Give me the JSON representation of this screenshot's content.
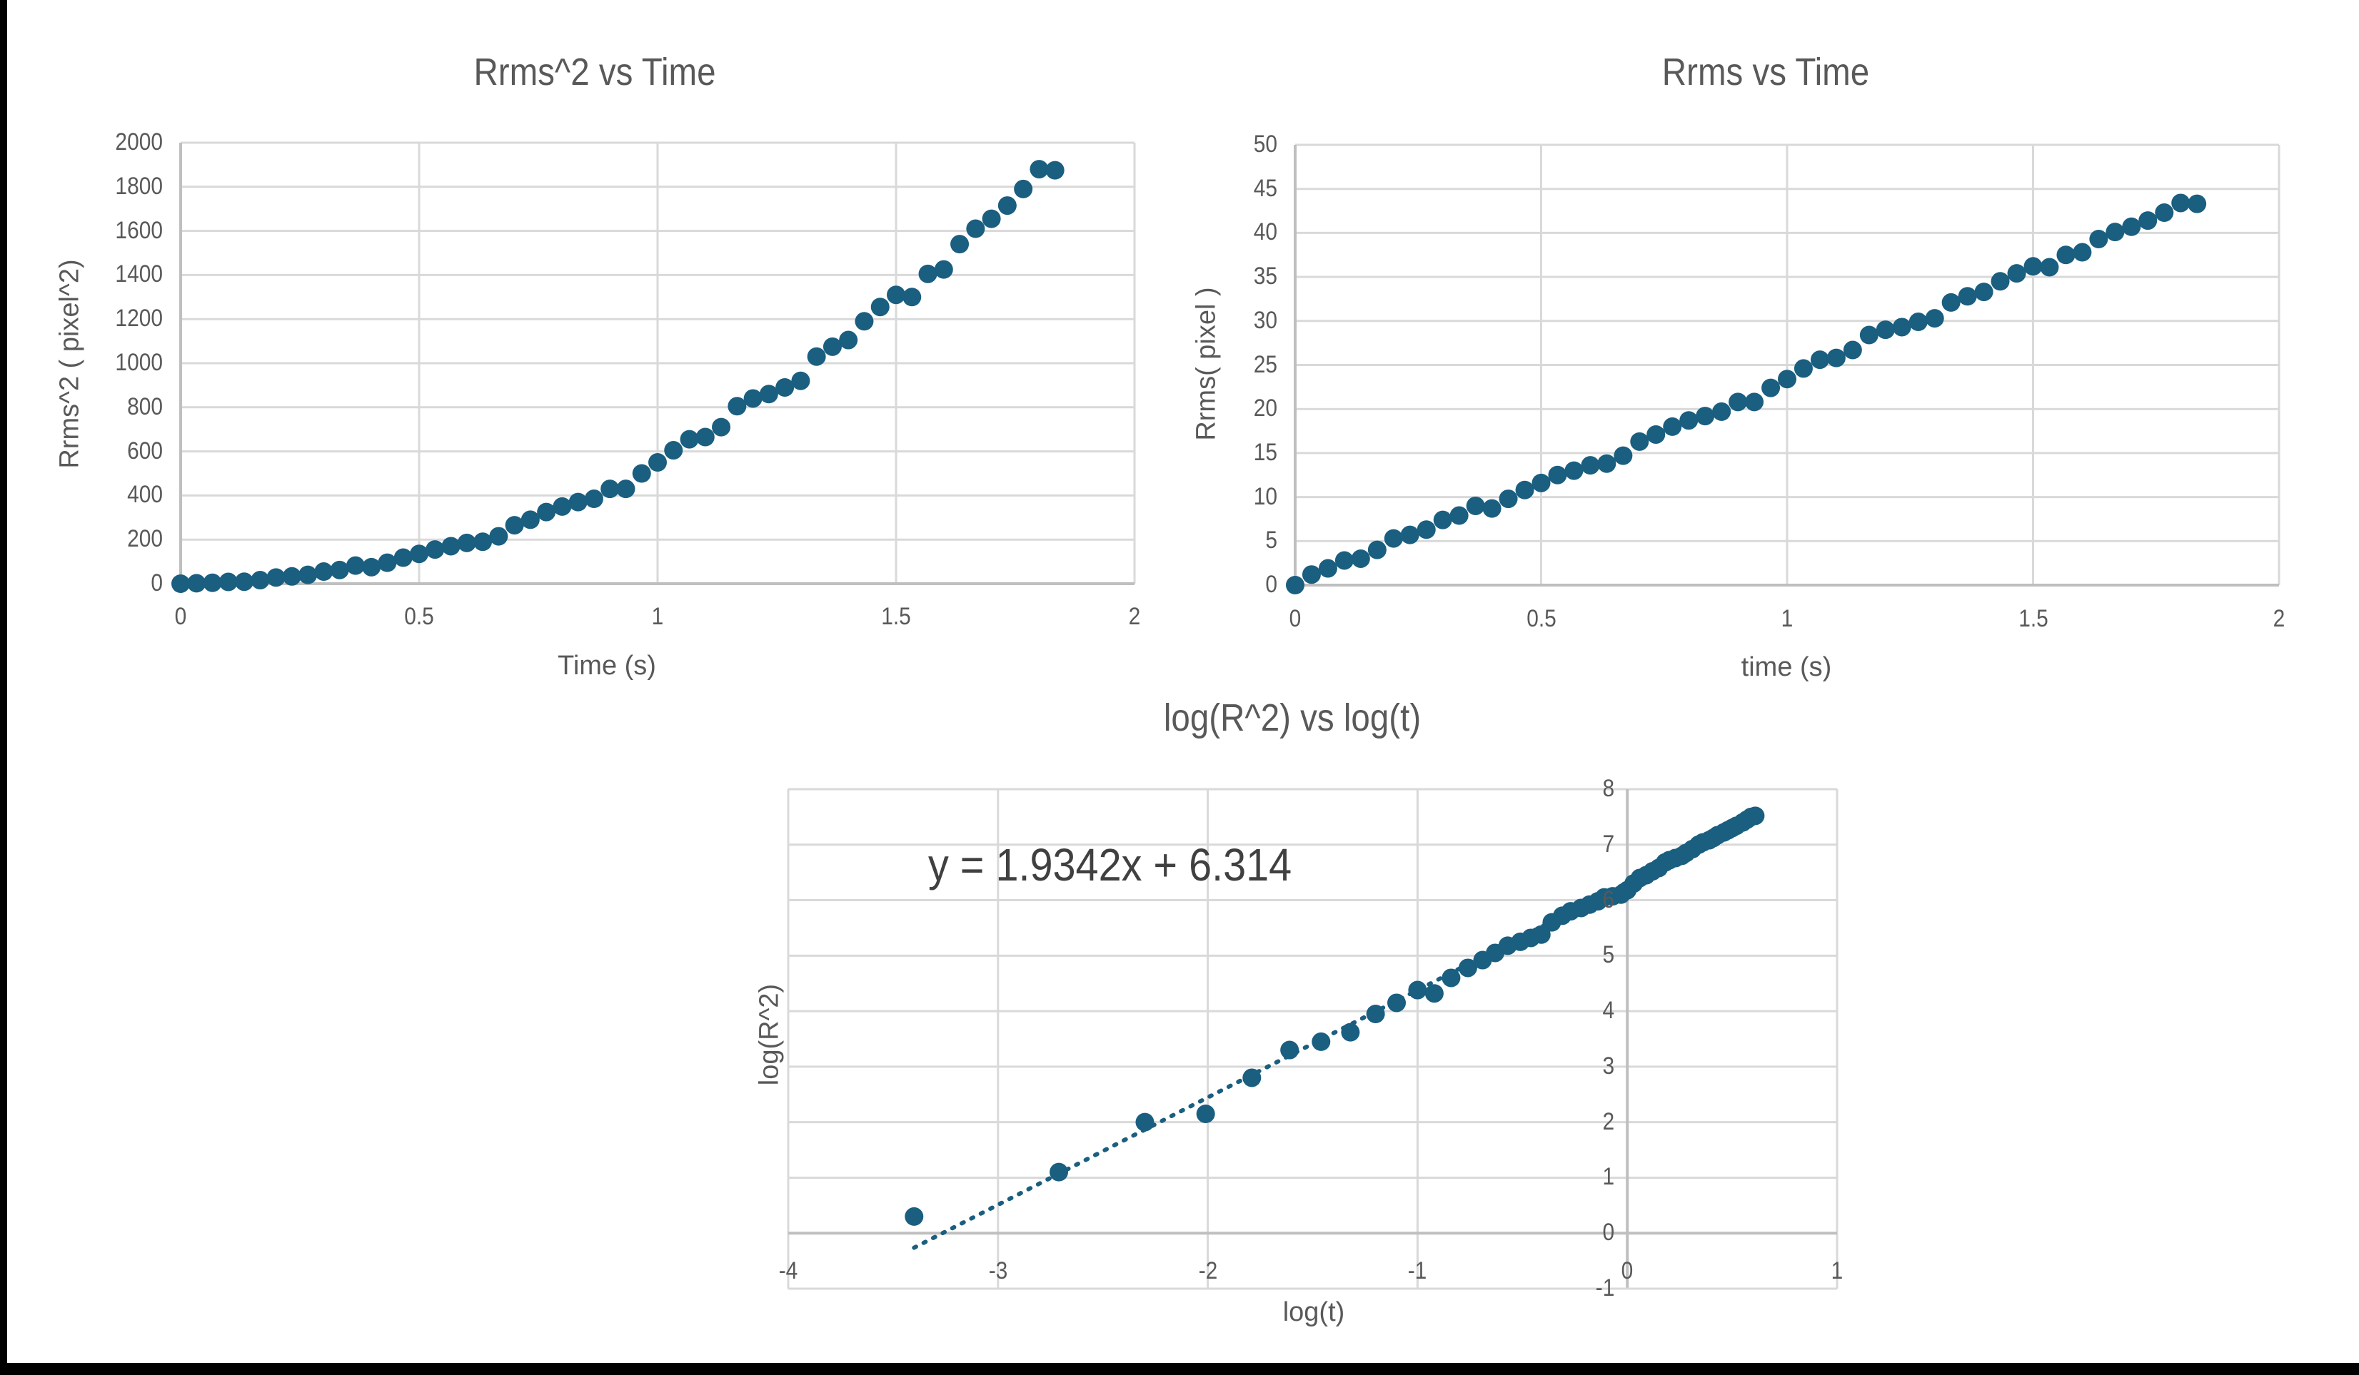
{
  "chart_data": [
    {
      "id": "rrms2",
      "type": "scatter",
      "title": "Rrms^2  vs Time",
      "xlabel": "Time (s)",
      "ylabel": "Rrms^2 ( pixel^2)",
      "xlim": [
        0,
        2
      ],
      "ylim": [
        0,
        2000
      ],
      "xticks": [
        "0",
        "0.5",
        "1",
        "1.5",
        "2"
      ],
      "yticks": [
        "0",
        "200",
        "400",
        "600",
        "800",
        "1000",
        "1200",
        "1400",
        "1600",
        "1800",
        "2000"
      ],
      "grid": true,
      "legend": "none",
      "marker_color": "#1A5E80",
      "x": [
        0,
        0.0333,
        0.0667,
        0.1,
        0.1333,
        0.1667,
        0.2,
        0.2333,
        0.2667,
        0.3,
        0.3333,
        0.3667,
        0.4,
        0.4333,
        0.4667,
        0.5,
        0.5333,
        0.5667,
        0.6,
        0.6333,
        0.6667,
        0.7,
        0.7333,
        0.7667,
        0.8,
        0.8333,
        0.8667,
        0.9,
        0.9333,
        0.9667,
        1.0,
        1.0333,
        1.0667,
        1.1,
        1.1333,
        1.1667,
        1.2,
        1.2333,
        1.2667,
        1.3,
        1.3333,
        1.3667,
        1.4,
        1.4333,
        1.4667,
        1.5,
        1.5333,
        1.5667,
        1.6,
        1.6333,
        1.6667,
        1.7,
        1.7333,
        1.7667,
        1.8,
        1.8333
      ],
      "y": [
        0,
        2,
        4,
        8,
        9,
        16,
        28,
        33,
        40,
        55,
        62,
        82,
        75,
        95,
        118,
        135,
        155,
        170,
        185,
        190,
        215,
        265,
        290,
        325,
        350,
        370,
        385,
        430,
        430,
        500,
        550,
        605,
        655,
        665,
        710,
        805,
        840,
        860,
        890,
        920,
        1030,
        1075,
        1105,
        1190,
        1255,
        1310,
        1300,
        1405,
        1425,
        1540,
        1610,
        1655,
        1715,
        1790,
        1880,
        1875
      ]
    },
    {
      "id": "rrms",
      "type": "scatter",
      "title": "Rrms vs Time",
      "xlabel": "time (s)",
      "ylabel": "Rrms( pixel )",
      "xlim": [
        0,
        2
      ],
      "ylim": [
        0,
        50
      ],
      "xticks": [
        "0",
        "0.5",
        "1",
        "1.5",
        "2"
      ],
      "yticks": [
        "0",
        "5",
        "10",
        "15",
        "20",
        "25",
        "30",
        "35",
        "40",
        "45",
        "50"
      ],
      "grid": true,
      "legend": "none",
      "marker_color": "#1A5E80",
      "x": [
        0,
        0.0333,
        0.0667,
        0.1,
        0.1333,
        0.1667,
        0.2,
        0.2333,
        0.2667,
        0.3,
        0.3333,
        0.3667,
        0.4,
        0.4333,
        0.4667,
        0.5,
        0.5333,
        0.5667,
        0.6,
        0.6333,
        0.6667,
        0.7,
        0.7333,
        0.7667,
        0.8,
        0.8333,
        0.8667,
        0.9,
        0.9333,
        0.9667,
        1.0,
        1.0333,
        1.0667,
        1.1,
        1.1333,
        1.1667,
        1.2,
        1.2333,
        1.2667,
        1.3,
        1.3333,
        1.3667,
        1.4,
        1.4333,
        1.4667,
        1.5,
        1.5333,
        1.5667,
        1.6,
        1.6333,
        1.6667,
        1.7,
        1.7333,
        1.7667,
        1.8,
        1.8333
      ],
      "y": [
        0,
        1.2,
        1.9,
        2.8,
        3.0,
        4.0,
        5.3,
        5.7,
        6.3,
        7.4,
        7.9,
        9.0,
        8.7,
        9.8,
        10.8,
        11.6,
        12.5,
        13.0,
        13.6,
        13.8,
        14.7,
        16.3,
        17.1,
        18.0,
        18.7,
        19.2,
        19.7,
        20.8,
        20.8,
        22.4,
        23.4,
        24.6,
        25.6,
        25.8,
        26.7,
        28.4,
        29.0,
        29.3,
        29.9,
        30.3,
        32.1,
        32.8,
        33.3,
        34.5,
        35.4,
        36.2,
        36.1,
        37.5,
        37.8,
        39.3,
        40.1,
        40.7,
        41.4,
        42.3,
        43.4,
        43.3
      ]
    },
    {
      "id": "loglog",
      "type": "scatter",
      "title": "log(R^2) vs log(t)",
      "xlabel": "log(t)",
      "ylabel": "log(R^2)",
      "xlim": [
        -4,
        1
      ],
      "ylim": [
        -1,
        8
      ],
      "xticks": [
        "-4",
        "-3",
        "-2",
        "-1",
        "0",
        "1"
      ],
      "yticks": [
        "-1",
        "0",
        "1",
        "2",
        "3",
        "4",
        "5",
        "6",
        "7",
        "8"
      ],
      "grid": true,
      "legend": "none",
      "marker_color": "#1A5E80",
      "trendline": {
        "type": "linear",
        "style": "dotted",
        "slope": 1.9342,
        "intercept": 6.314,
        "x_range": [
          -3.4,
          0.6
        ],
        "equation": "y = 1.9342x + 6.314"
      },
      "x": [
        -3.4,
        -2.71,
        -2.3,
        -2.01,
        -1.79,
        -1.61,
        -1.46,
        -1.32,
        -1.2,
        -1.1,
        -1.0,
        -0.92,
        -0.84,
        -0.76,
        -0.69,
        -0.63,
        -0.57,
        -0.51,
        -0.46,
        -0.41,
        -0.36,
        -0.31,
        -0.27,
        -0.22,
        -0.18,
        -0.14,
        -0.11,
        -0.07,
        -0.03,
        0.0,
        0.03,
        0.06,
        0.09,
        0.12,
        0.15,
        0.18,
        0.2,
        0.23,
        0.26,
        0.28,
        0.31,
        0.34,
        0.36,
        0.39,
        0.41,
        0.43,
        0.46,
        0.48,
        0.5,
        0.52,
        0.55,
        0.57,
        0.59,
        0.61
      ],
      "y": [
        0.3,
        1.1,
        2.0,
        2.15,
        2.8,
        3.3,
        3.45,
        3.62,
        3.95,
        4.15,
        4.38,
        4.32,
        4.6,
        4.78,
        4.92,
        5.05,
        5.18,
        5.25,
        5.32,
        5.38,
        5.6,
        5.72,
        5.8,
        5.86,
        5.92,
        5.98,
        6.05,
        6.07,
        6.1,
        6.18,
        6.3,
        6.4,
        6.45,
        6.52,
        6.58,
        6.68,
        6.72,
        6.76,
        6.8,
        6.85,
        6.92,
        7.0,
        7.04,
        7.08,
        7.12,
        7.17,
        7.22,
        7.26,
        7.3,
        7.34,
        7.4,
        7.45,
        7.5,
        7.52
      ]
    }
  ]
}
